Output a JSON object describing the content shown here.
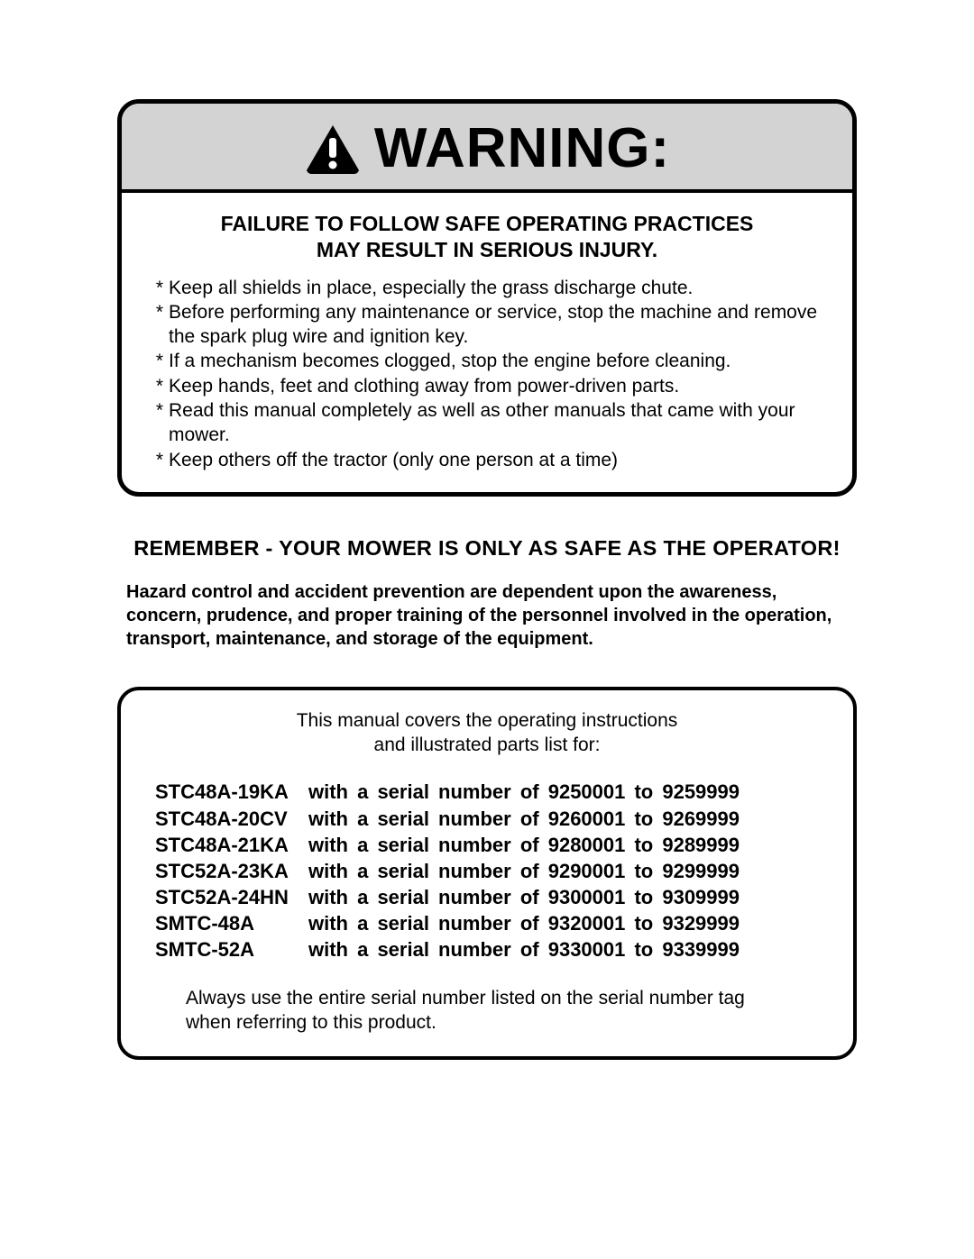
{
  "colors": {
    "page_bg": "#ffffff",
    "text": "#000000",
    "border": "#000000",
    "warning_header_bg": "#d3d3d3",
    "triangle_fill": "#000000",
    "bang_fill": "#ffffff"
  },
  "warning": {
    "title": "WARNING:",
    "failure_line1": "FAILURE TO FOLLOW SAFE OPERATING PRACTICES",
    "failure_line2": "MAY RESULT IN SERIOUS INJURY.",
    "bullets": [
      "Keep all shields in place, especially the grass discharge chute.",
      "Before performing any maintenance or service, stop the machine and remove the spark plug wire and ignition key.",
      "If a mechanism becomes clogged, stop the engine before cleaning.",
      "Keep hands, feet and clothing away from power-driven parts.",
      "Read this manual completely as well as other manuals that came with your mower.",
      "Keep others off the tractor (only one person at a time)"
    ]
  },
  "remember": "REMEMBER - YOUR MOWER IS ONLY AS SAFE AS THE OPERATOR!",
  "hazard": "Hazard control and accident prevention are dependent upon the awareness, concern, prudence, and proper training of the personnel involved in the operation, transport, maintenance, and storage of the equipment.",
  "models": {
    "intro_line1": "This manual covers the operating instructions",
    "intro_line2": "and illustrated parts list for:",
    "rows": [
      {
        "code": "STC48A-19KA",
        "serial": "with a serial number of 9250001 to 9259999"
      },
      {
        "code": "STC48A-20CV",
        "serial": "with a serial number of 9260001 to 9269999"
      },
      {
        "code": "STC48A-21KA",
        "serial": "with a serial number of 9280001 to 9289999"
      },
      {
        "code": "STC52A-23KA",
        "serial": "with a serial number of 9290001 to 9299999"
      },
      {
        "code": "STC52A-24HN",
        "serial": "with a serial number of 9300001 to 9309999"
      },
      {
        "code": "SMTC-48A",
        "serial": "with a serial number of 9320001 to 9329999"
      },
      {
        "code": "SMTC-52A",
        "serial": "with a serial number of 9330001 to 9339999"
      }
    ],
    "note": "Always use the entire serial number listed on the serial number tag when referring to this product."
  }
}
